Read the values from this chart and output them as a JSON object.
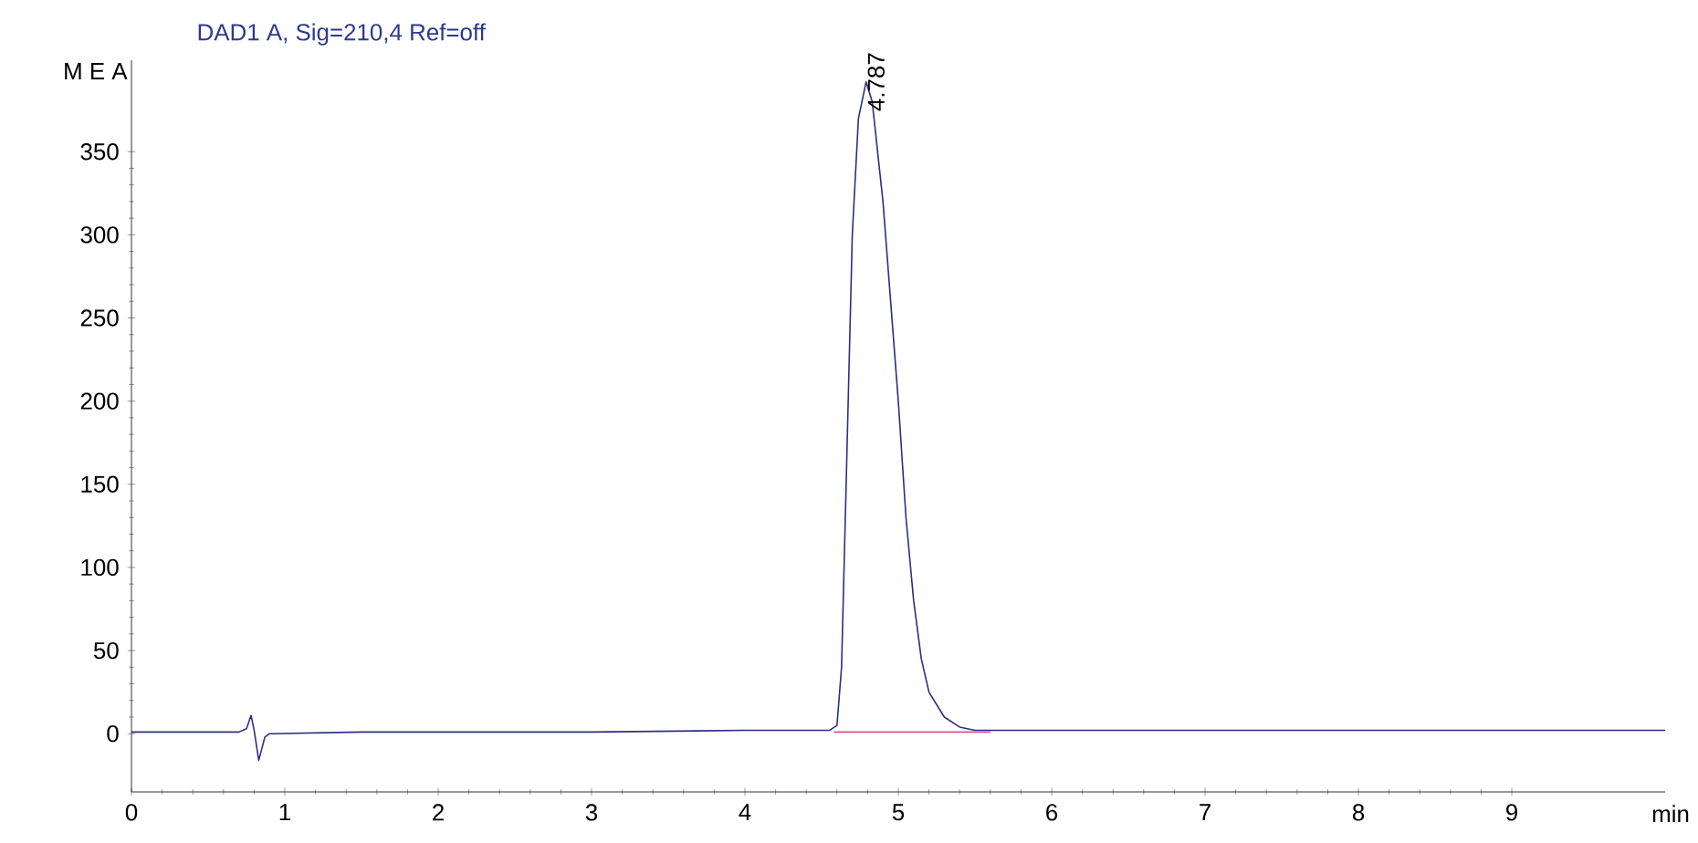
{
  "chart_data": {
    "type": "line",
    "title": "DAD1 A, Sig=210,4 Ref=off",
    "xlabel": "min",
    "ylabel": "M E A",
    "xlim": [
      0,
      10
    ],
    "ylim": [
      -35,
      405
    ],
    "xticks": [
      0,
      1,
      2,
      3,
      4,
      5,
      6,
      7,
      8,
      9
    ],
    "yticks": [
      0,
      50,
      100,
      150,
      200,
      250,
      300,
      350
    ],
    "grid": false,
    "marker": "none",
    "line_style": "solid",
    "annotations": [
      {
        "text": "4.787",
        "x": 4.787,
        "y": 392
      }
    ],
    "series": [
      {
        "color": "#2b2f80",
        "x": [
          0,
          0.5,
          0.7,
          0.75,
          0.78,
          0.8,
          0.83,
          0.87,
          0.9,
          1.5,
          2,
          3,
          4,
          4.4,
          4.55,
          4.6,
          4.63,
          4.66,
          4.7,
          4.74,
          4.79,
          4.83,
          4.9,
          5.0,
          5.05,
          5.1,
          5.15,
          5.2,
          5.3,
          5.4,
          5.5,
          6,
          7,
          8,
          9,
          10
        ],
        "values": [
          1,
          1,
          1,
          3,
          11,
          2,
          -16,
          -2,
          0,
          1,
          1,
          1,
          2,
          2,
          2,
          5,
          40,
          150,
          300,
          370,
          392,
          380,
          320,
          200,
          130,
          80,
          45,
          25,
          10,
          4,
          2,
          2,
          2,
          2,
          2,
          2
        ]
      },
      {
        "color": "#e0508c",
        "x": [
          4.58,
          5.6
        ],
        "values": [
          1,
          1
        ]
      }
    ]
  }
}
